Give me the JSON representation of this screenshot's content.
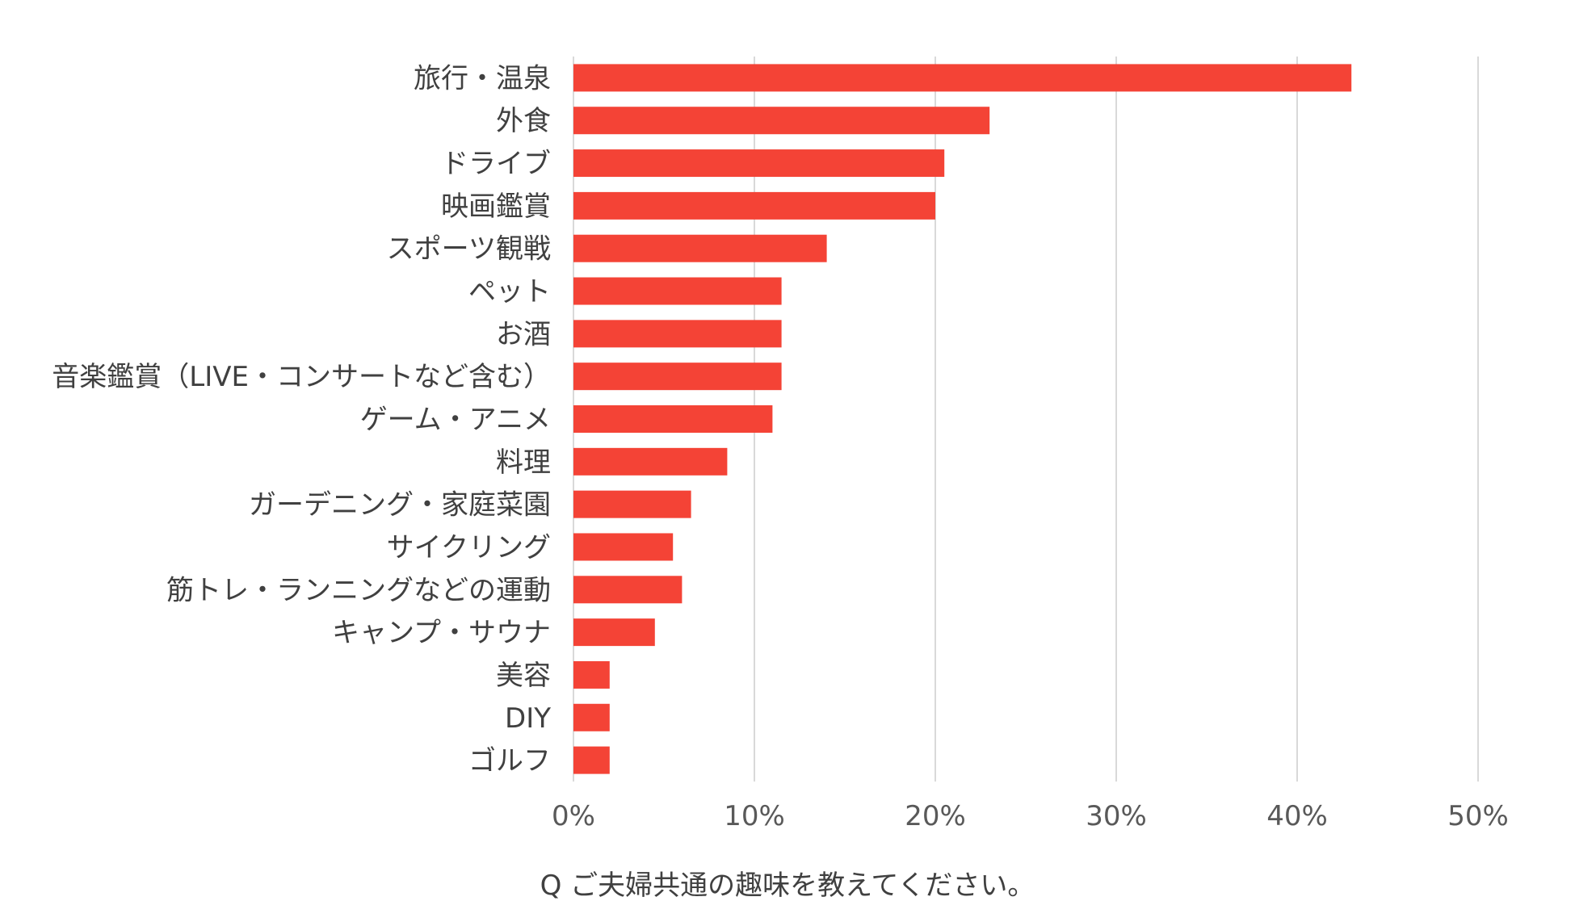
{
  "chart_data": {
    "type": "bar",
    "orientation": "horizontal",
    "categories": [
      "旅行・温泉",
      "外食",
      "ドライブ",
      "映画鑑賞",
      "スポーツ観戦",
      "ペット",
      "お酒",
      "音楽鑑賞（LIVE・コンサートなど含む）",
      "ゲーム・アニメ",
      "料理",
      "ガーデニング・家庭菜園",
      "サイクリング",
      "筋トレ・ランニングなどの運動",
      "キャンプ・サウナ",
      "美容",
      "DIY",
      "ゴルフ"
    ],
    "values": [
      43,
      23,
      20.5,
      20,
      14,
      11.5,
      11.5,
      11.5,
      11,
      8.5,
      6.5,
      5.5,
      6,
      4.5,
      2,
      2,
      2
    ],
    "unit": "%",
    "xlim": [
      0,
      50
    ],
    "xticks": [
      "0%",
      "10%",
      "20%",
      "30%",
      "40%",
      "50%"
    ],
    "grid": true,
    "bar_color": "#f44336",
    "grid_color": "#d9d9d9",
    "text_color": "#404040",
    "caption": "Q ご夫婦共通の趣味を教えてください。"
  }
}
